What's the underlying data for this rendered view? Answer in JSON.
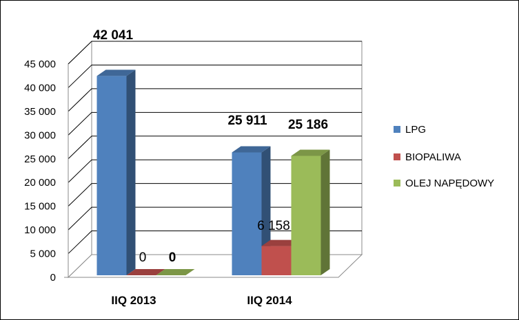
{
  "chart_data": {
    "type": "bar",
    "categories": [
      "IIQ 2013",
      "IIQ 2014"
    ],
    "series": [
      {
        "name": "LPG",
        "values": [
          42041,
          25911
        ],
        "color": "#4F81BD",
        "labels": [
          "42 041",
          "25 911"
        ]
      },
      {
        "name": "BIOPALIWA",
        "values": [
          0,
          6158
        ],
        "color": "#C0504D",
        "labels": [
          "0",
          "6 158"
        ]
      },
      {
        "name": "OLEJ NAPĘDOWY",
        "values": [
          0,
          25186
        ],
        "color": "#9BBB59",
        "labels": [
          "0",
          "25 186"
        ]
      }
    ],
    "ylim": [
      0,
      45000
    ],
    "yticks": [
      "0",
      "5 000",
      "10 000",
      "15 000",
      "20 000",
      "25 000",
      "30 000",
      "35 000",
      "40 000",
      "45 000"
    ],
    "grid": true,
    "legend_position": "right",
    "style": "3d-clustered-column"
  }
}
